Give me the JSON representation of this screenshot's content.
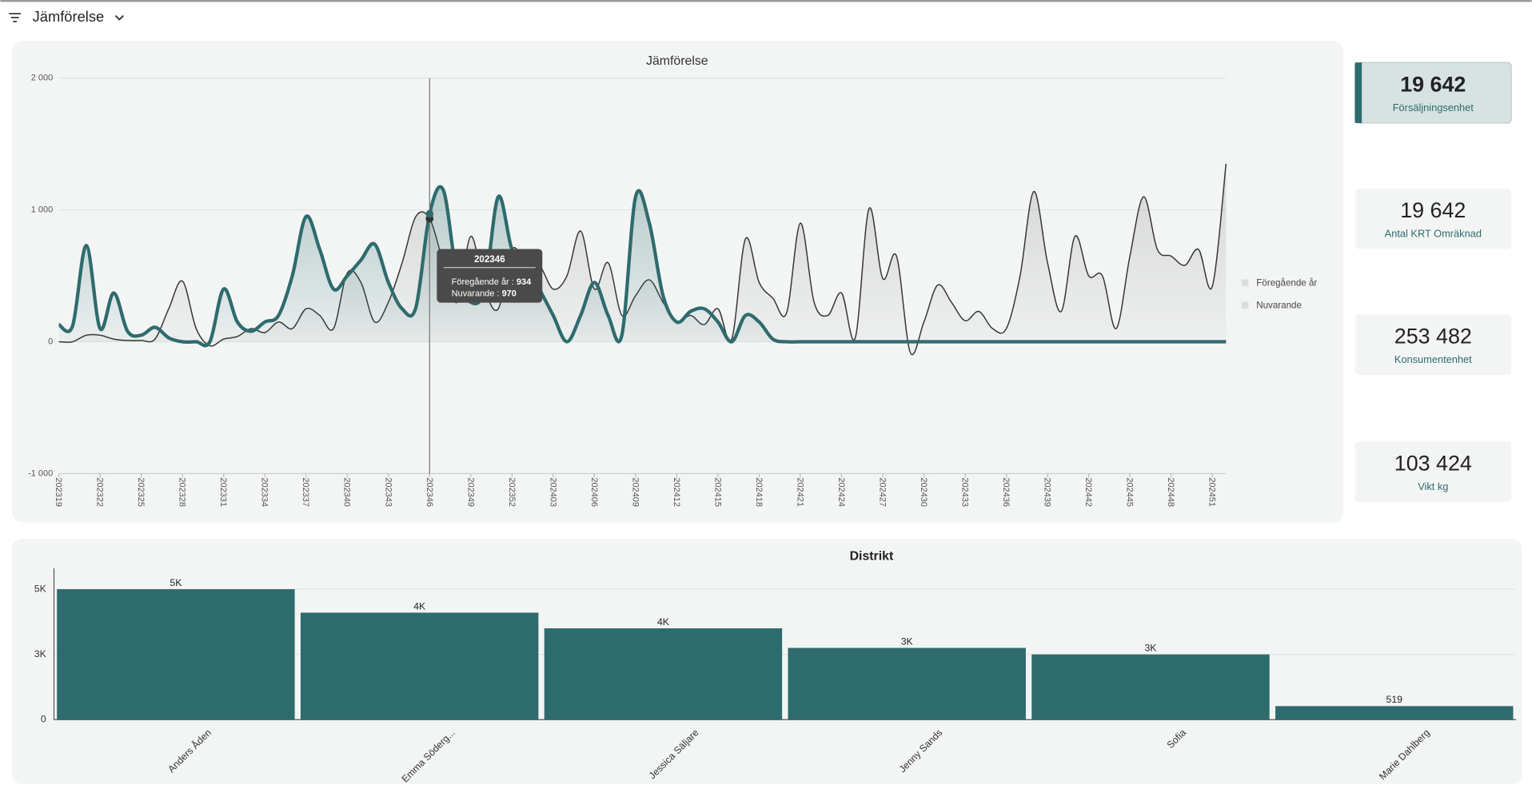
{
  "header": {
    "title": "Jämförelse"
  },
  "chart_data": [
    {
      "type": "line",
      "title": "Jämförelse",
      "categories": [
        "202319",
        null,
        null,
        "202322",
        null,
        null,
        "202325",
        null,
        null,
        "202328",
        null,
        null,
        "202331",
        null,
        null,
        "202334",
        null,
        null,
        "202337",
        null,
        null,
        "202340",
        null,
        null,
        "202343",
        null,
        null,
        "202346",
        null,
        null,
        "202349",
        null,
        null,
        "202352",
        null,
        null,
        "202403",
        null,
        null,
        "202406",
        null,
        null,
        "202409",
        null,
        null,
        "202412",
        null,
        null,
        "202415",
        null,
        null,
        "202418",
        null,
        null,
        "202421",
        null,
        null,
        "202424",
        null,
        null,
        "202427",
        null,
        null,
        "202430",
        null,
        null,
        "202433",
        null,
        null,
        "202436",
        null,
        null,
        "202439",
        null,
        null,
        "202442",
        null,
        null,
        "202445",
        null,
        null,
        "202448",
        null,
        null,
        "202451",
        null
      ],
      "series": [
        {
          "name": "Föregående år",
          "color": "#333333",
          "width": 1.2,
          "values": [
            0,
            0,
            50,
            50,
            20,
            10,
            10,
            20,
            250,
            460,
            100,
            -30,
            20,
            40,
            100,
            70,
            150,
            100,
            250,
            200,
            100,
            520,
            450,
            150,
            300,
            600,
            950,
            934,
            600,
            300,
            800,
            400,
            250,
            700,
            600,
            580,
            400,
            500,
            840,
            400,
            600,
            200,
            350,
            470,
            300,
            150,
            200,
            130,
            250,
            20,
            780,
            450,
            330,
            220,
            900,
            300,
            200,
            370,
            30,
            1010,
            480,
            650,
            -80,
            150,
            430,
            300,
            160,
            230,
            100,
            100,
            500,
            1140,
            600,
            230,
            800,
            500,
            500,
            100,
            650,
            1100,
            700,
            650,
            580,
            700,
            420,
            1350
          ]
        },
        {
          "name": "Nuvarande",
          "color": "#2e6b6e",
          "width": 3.5,
          "values": [
            130,
            120,
            730,
            100,
            370,
            80,
            50,
            110,
            30,
            0,
            0,
            0,
            400,
            150,
            80,
            150,
            200,
            500,
            950,
            700,
            400,
            500,
            620,
            740,
            450,
            250,
            260,
            970,
            1150,
            500,
            300,
            400,
            1100,
            700,
            600,
            400,
            200,
            0,
            200,
            450,
            200,
            50,
            1100,
            900,
            350,
            150,
            230,
            250,
            150,
            0,
            200,
            150,
            20,
            0,
            0,
            0,
            0,
            0,
            0,
            0,
            0,
            0,
            0,
            0,
            0,
            0,
            0,
            0,
            0,
            0,
            0,
            0,
            0,
            0,
            0,
            0,
            0,
            0,
            0,
            0,
            0,
            0,
            0,
            0,
            0,
            0
          ]
        }
      ],
      "ylim": [
        -1000,
        2000
      ],
      "yticks": [
        {
          "value": -1000,
          "label": "-1 000"
        },
        0,
        {
          "value": 1000,
          "label": "1 000"
        },
        {
          "value": 2000,
          "label": "2 000"
        }
      ],
      "grid": true,
      "legend": "right"
    },
    {
      "type": "bar",
      "title": "Distrikt",
      "categories": [
        "Anders Åden",
        "Emma Söderg...",
        "Jessica Säljare",
        "Jenny Sands",
        "Sofia",
        "Marie Dahlberg"
      ],
      "values": [
        5000,
        4100,
        3500,
        2750,
        2500,
        519
      ],
      "value_labels": [
        "5K",
        "4K",
        "4K",
        "3K",
        "3K",
        "519"
      ],
      "color": "#2e6b6e",
      "ylim": [
        0,
        5800
      ],
      "yticks": [
        0,
        {
          "value": 2500,
          "label": "3K"
        },
        {
          "value": 5000,
          "label": "5K"
        }
      ],
      "grid": true
    }
  ],
  "tooltip": {
    "title": "202346",
    "items": [
      {
        "name": "Föregående år",
        "value": 934
      },
      {
        "name": "Nuvarande",
        "value": 970
      }
    ]
  },
  "kpis": [
    {
      "value": "19 642",
      "label": "Försäljningsenhet"
    },
    {
      "value": "19 642",
      "label": "Antal KRT Omräknad"
    },
    {
      "value": "253 482",
      "label": "Konsumentenhet"
    },
    {
      "value": "103 424",
      "label": "Vikt kg"
    }
  ]
}
